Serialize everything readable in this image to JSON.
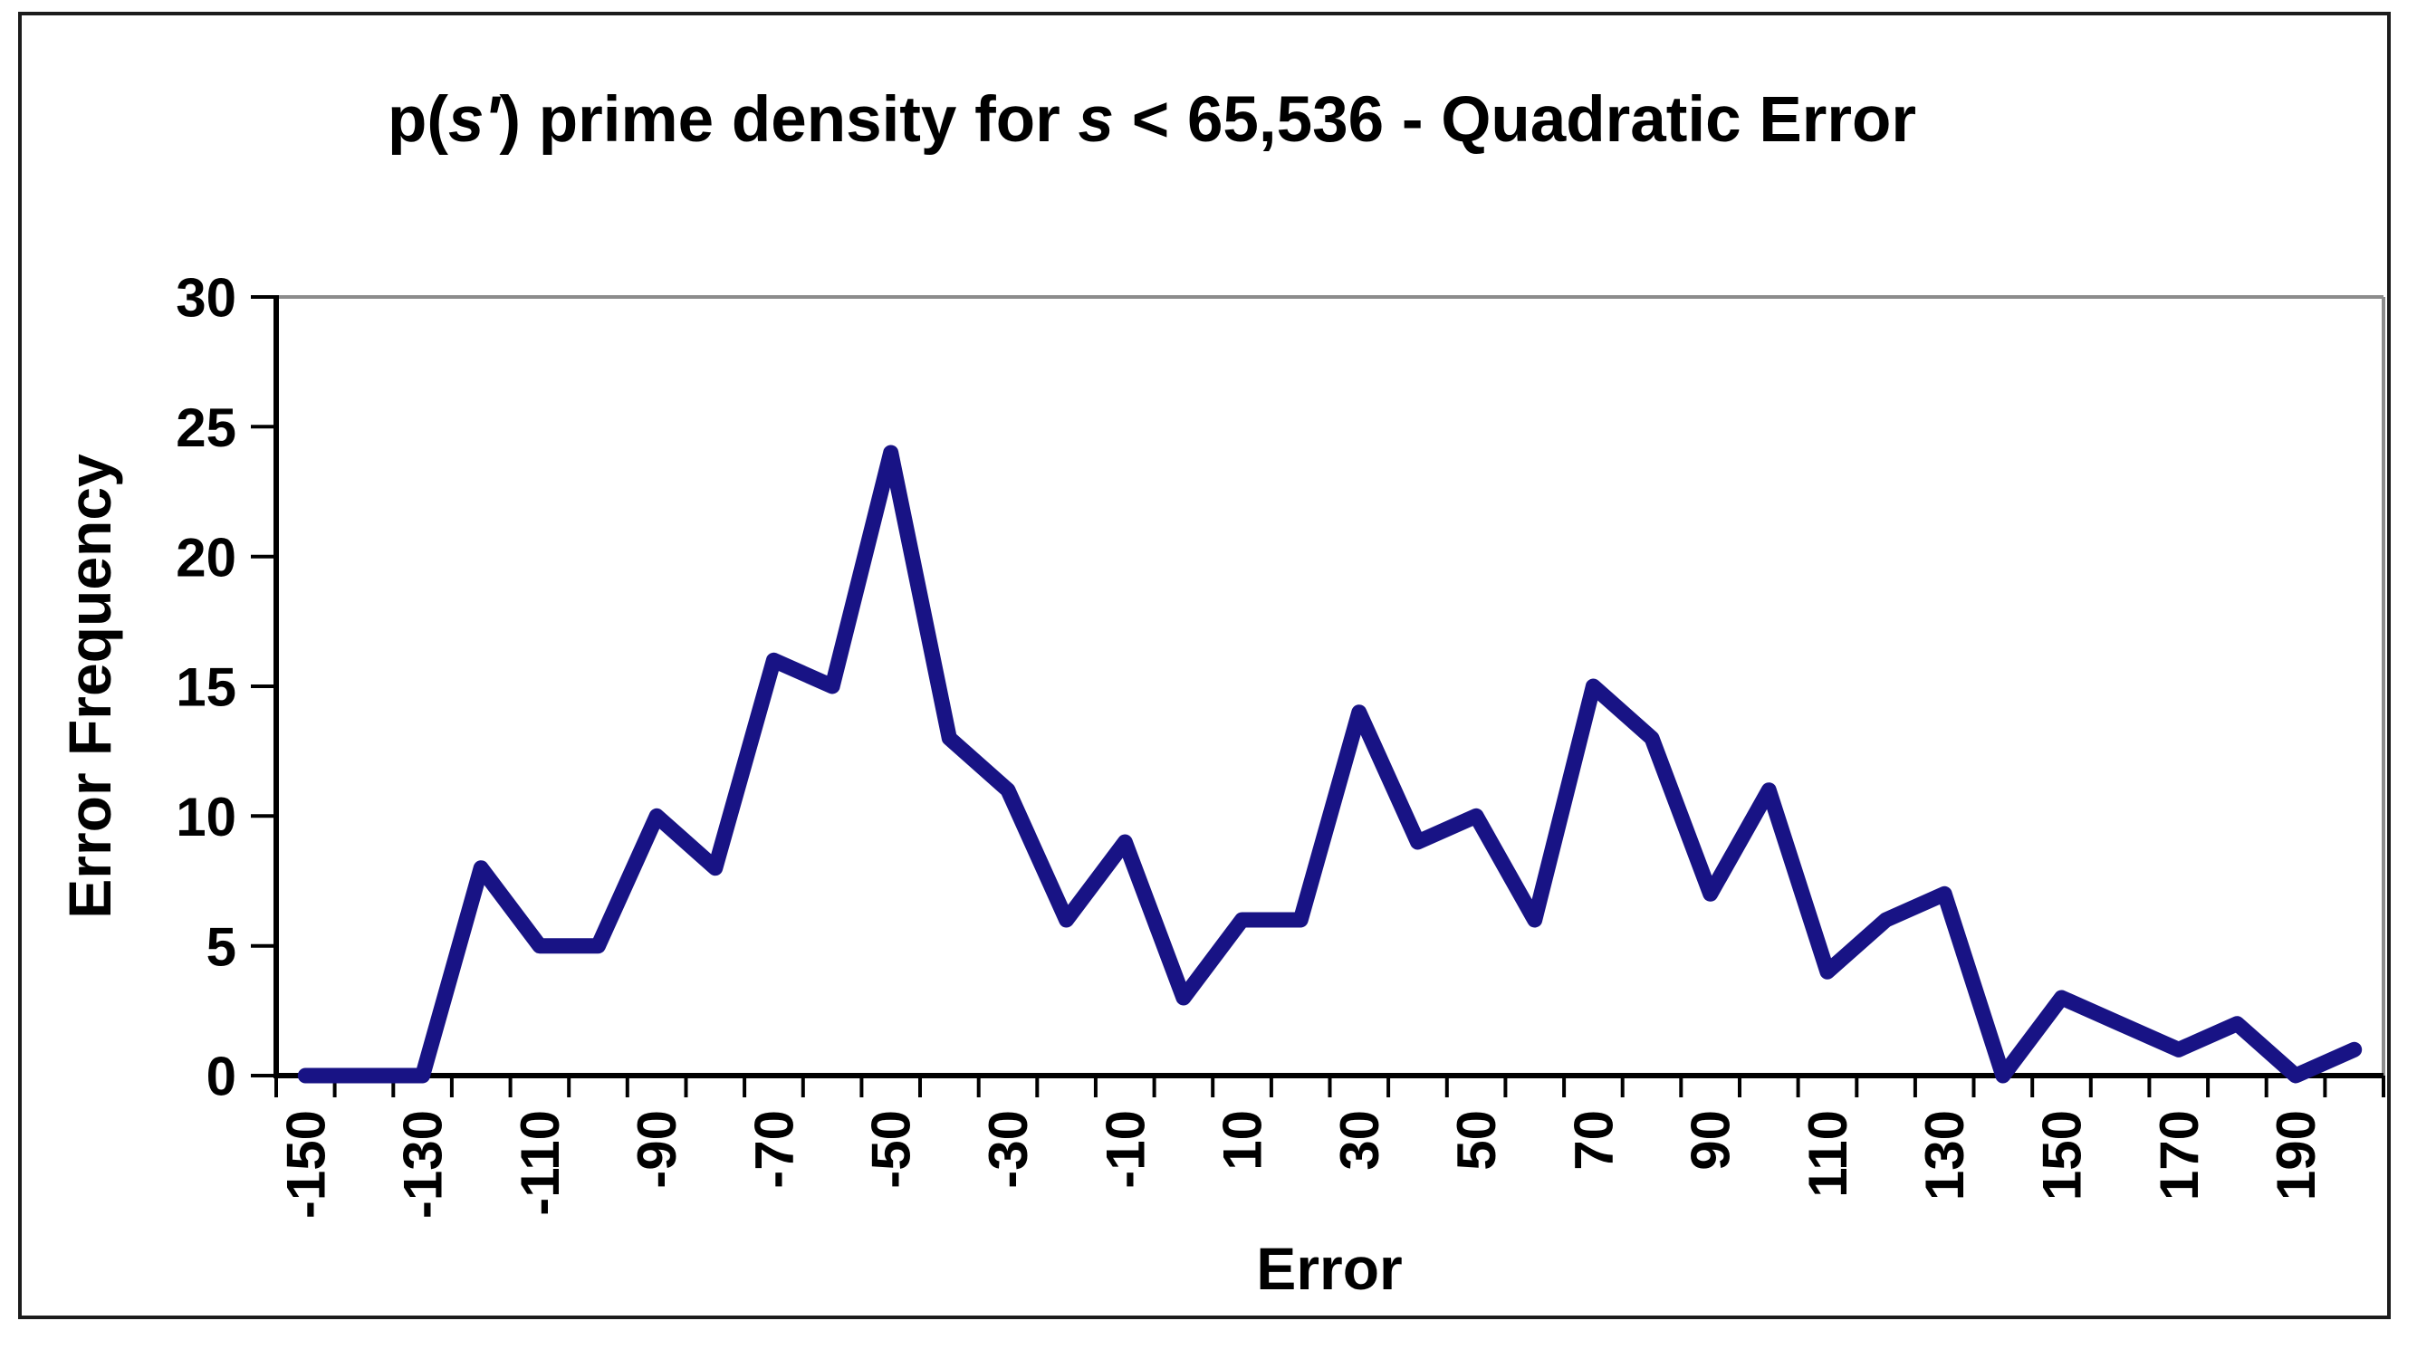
{
  "title": {
    "part1": "p(",
    "part2_italic": "s'",
    "part3": ") prime density for ",
    "part4_italic": "s",
    "part5": " < 65,536 - Quadratic Error",
    "full": "p(s') prime density for s < 65,536 - Quadratic Error"
  },
  "chart_data": {
    "type": "line",
    "title": "p(s') prime density for s < 65,536 - Quadratic Error",
    "xlabel": "Error",
    "ylabel": "Error Frequency",
    "x": [
      -150,
      -140,
      -130,
      -120,
      -110,
      -100,
      -90,
      -80,
      -70,
      -60,
      -50,
      -40,
      -30,
      -20,
      -10,
      0,
      10,
      20,
      30,
      40,
      50,
      60,
      70,
      80,
      90,
      100,
      110,
      120,
      130,
      140,
      150,
      160,
      170,
      180,
      190,
      200
    ],
    "values": [
      0,
      0,
      0,
      8,
      5,
      5,
      10,
      8,
      16,
      15,
      24,
      13,
      11,
      6,
      9,
      3,
      6,
      6,
      14,
      9,
      10,
      6,
      15,
      13,
      7,
      11,
      4,
      6,
      7,
      0,
      3,
      2,
      1,
      2,
      0,
      1
    ],
    "x_tick_labels": [
      "-150",
      "-130",
      "-110",
      "-90",
      "-70",
      "-50",
      "-30",
      "-10",
      "10",
      "30",
      "50",
      "70",
      "90",
      "110",
      "130",
      "150",
      "170",
      "190"
    ],
    "x_label_step": 2,
    "y_ticks": [
      0,
      5,
      10,
      15,
      20,
      25,
      30
    ],
    "y_tick_labels": [
      "0",
      "5",
      "10",
      "15",
      "20",
      "25",
      "30"
    ],
    "ylim": [
      0,
      30
    ],
    "grid": false,
    "legend": null,
    "line_color": "#181385",
    "axis_color": "#000000",
    "plot_border_color": "#8c8c8c"
  },
  "colors": {
    "background": "#ffffff",
    "outer_border": "#1c1c1c",
    "text": "#000000",
    "line": "#181385",
    "plot_border_gray": "#8c8c8c"
  }
}
